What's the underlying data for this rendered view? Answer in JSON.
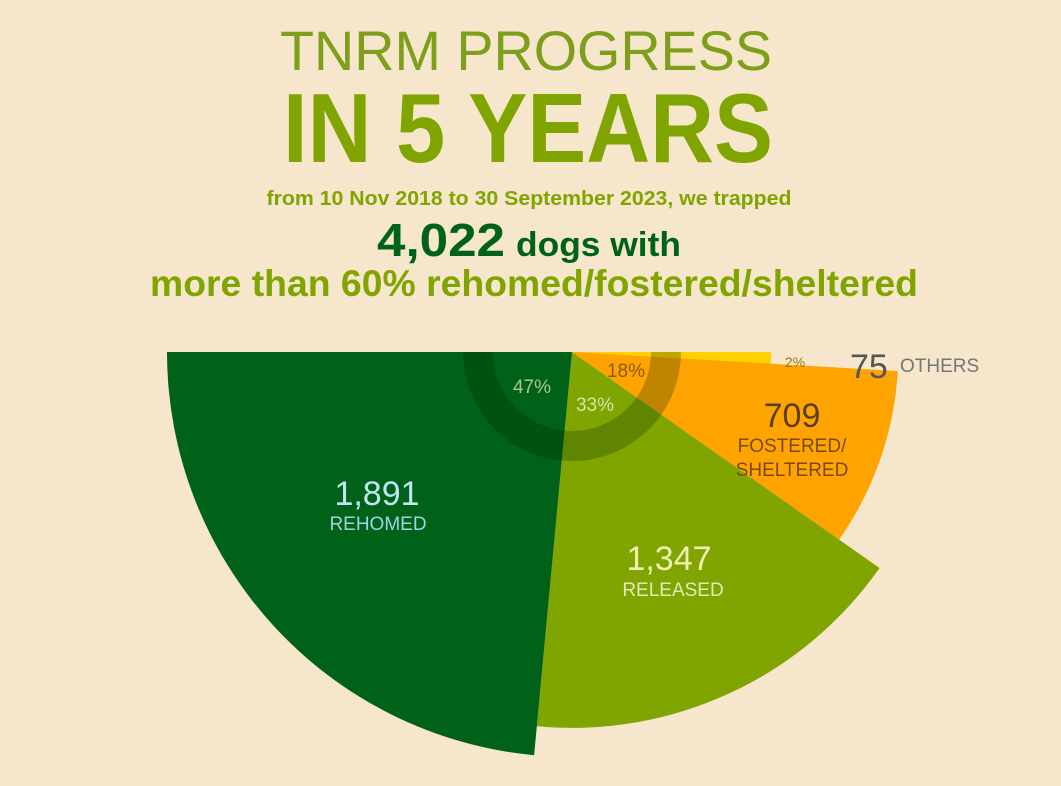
{
  "header": {
    "title_line1": "TNRM PROGRESS",
    "title_line2": "IN 5 YEARS",
    "subtitle": "from 10 Nov 2018 to 30 September 2023, we trapped",
    "total": "4,022",
    "total_suffix": "dogs with",
    "headline": "more than 60% rehomed/fostered/sheltered"
  },
  "colors": {
    "background": "#f5e6cc",
    "rehomed": "#006119",
    "released": "#80a500",
    "fostered": "#ffa300",
    "others": "#ffd100",
    "title": "#7f9f1c"
  },
  "chart_data": {
    "type": "pie",
    "variant": "half polar area",
    "total": 4022,
    "slices": [
      {
        "name": "REHOMED",
        "value": 1891,
        "value_label": "1,891",
        "percent_label": "47%",
        "percent": 47
      },
      {
        "name": "RELEASED",
        "value": 1347,
        "value_label": "1,347",
        "percent_label": "33%",
        "percent": 33
      },
      {
        "name": "FOSTERED/ SHELTERED",
        "line1": "FOSTERED/",
        "line2": "SHELTERED",
        "value": 709,
        "value_label": "709",
        "percent_label": "18%",
        "percent": 18
      },
      {
        "name": "OTHERS",
        "value": 75,
        "value_label": "75",
        "percent_label": "2%",
        "percent": 2
      }
    ]
  }
}
